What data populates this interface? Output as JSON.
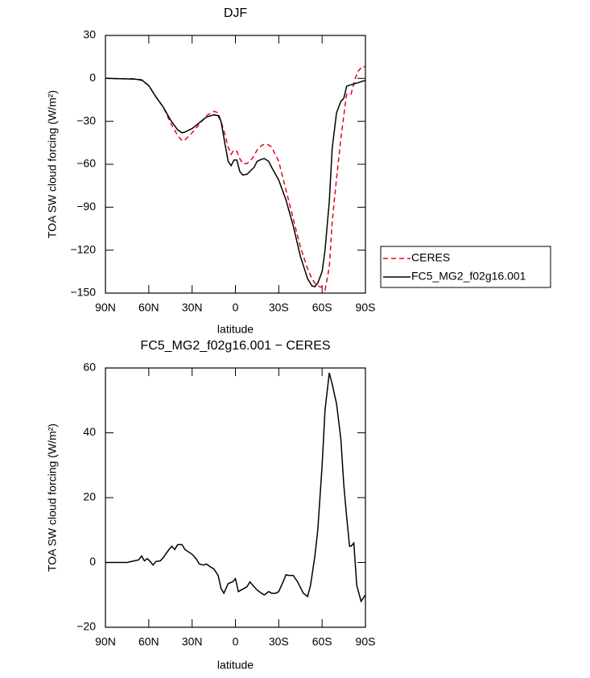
{
  "chart_data": [
    {
      "type": "line",
      "title": "DJF",
      "xlabel": "latitude",
      "ylabel": "TOA SW cloud forcing (W/m²)",
      "x": [
        90,
        70,
        65,
        60,
        55,
        50,
        45,
        40,
        37,
        35,
        30,
        25,
        20,
        15,
        12,
        10,
        7,
        5,
        3,
        1,
        -1,
        -3,
        -5,
        -8,
        -10,
        -13,
        -15,
        -18,
        -20,
        -23,
        -25,
        -30,
        -35,
        -40,
        -45,
        -50,
        -53,
        -55,
        -57,
        -60,
        -62,
        -65,
        -67,
        -70,
        -73,
        -75,
        -77,
        -80,
        -83,
        -85,
        -88,
        -90
      ],
      "series": [
        {
          "name": "CERES",
          "color": "#e8001c",
          "dash": true,
          "values": [
            0,
            -0.3,
            -1.5,
            -5,
            -13,
            -20,
            -31,
            -40,
            -43.5,
            -43,
            -38,
            -32,
            -26,
            -23,
            -24,
            -30,
            -40,
            -48,
            -53,
            -50,
            -51,
            -56,
            -59.5,
            -59.5,
            -58,
            -54,
            -50,
            -47,
            -46,
            -46.5,
            -48,
            -58,
            -78,
            -98,
            -118,
            -133,
            -140,
            -143,
            -145,
            -146,
            -148,
            -132,
            -100,
            -70,
            -42,
            -26,
            -11,
            -11,
            0,
            5,
            8.5,
            8
          ]
        },
        {
          "name": "FC5_MG2_f02g16.001",
          "color": "#000000",
          "dash": false,
          "values": [
            0,
            -0.5,
            -1,
            -5,
            -13,
            -20,
            -29,
            -36,
            -38,
            -37.5,
            -35,
            -31,
            -27,
            -25.5,
            -26,
            -30,
            -47,
            -58,
            -61,
            -57,
            -57,
            -65,
            -67.5,
            -67,
            -65,
            -62,
            -58,
            -56.5,
            -56,
            -58,
            -62,
            -71,
            -85,
            -103,
            -124.5,
            -140,
            -145,
            -145.5,
            -143,
            -135,
            -120,
            -86,
            -49,
            -24,
            -16,
            -14,
            -5.5,
            -4.5,
            -3.5,
            -3,
            -2,
            -1.5
          ]
        }
      ],
      "xlim": [
        90,
        -90
      ],
      "xticks": [
        {
          "value": 90,
          "label": "90N"
        },
        {
          "value": 60,
          "label": "60N"
        },
        {
          "value": 30,
          "label": "30N"
        },
        0,
        {
          "value": -30,
          "label": "30S"
        },
        {
          "value": -60,
          "label": "60S"
        },
        {
          "value": -90,
          "label": "90S"
        }
      ],
      "ylim": [
        -150,
        30
      ],
      "yticks": [
        30,
        0,
        {
          "value": -30,
          "label": "−30"
        },
        {
          "value": -60,
          "label": "−60"
        },
        {
          "value": -90,
          "label": "−90"
        },
        {
          "value": -120,
          "label": "−120"
        },
        {
          "value": -150,
          "label": "−150"
        }
      ],
      "legend": "right"
    },
    {
      "type": "line",
      "title": "FC5_MG2_f02g16.001 − CERES",
      "xlabel": "latitude",
      "ylabel": "TOA SW cloud forcing (W/m²)",
      "x": [
        90,
        80,
        75,
        70,
        67,
        65,
        63,
        61,
        59,
        57,
        55,
        52,
        50,
        46,
        44,
        42,
        40,
        37,
        35,
        30,
        27,
        25,
        22,
        20,
        17,
        15,
        12,
        10,
        8,
        5,
        2,
        0,
        -2,
        -4,
        -6,
        -8,
        -10,
        -12,
        -15,
        -18,
        -20,
        -23,
        -25,
        -28,
        -30,
        -33,
        -35,
        -37,
        -40,
        -43,
        -47,
        -50,
        -52,
        -55,
        -57,
        -60,
        -62,
        -65,
        -67,
        -70,
        -73,
        -75,
        -77,
        -79,
        -80,
        -82,
        -84,
        -87,
        -90
      ],
      "series": [
        {
          "color": "#000000",
          "dash": false,
          "values": [
            0,
            0,
            0,
            0.5,
            0.8,
            2,
            0.5,
            1.2,
            0.3,
            -0.8,
            0.3,
            0.5,
            1.5,
            4,
            5,
            4,
            5.5,
            5.5,
            4,
            2.5,
            1,
            -0.5,
            -0.8,
            -0.5,
            -1.5,
            -2,
            -4,
            -8,
            -9.5,
            -6.5,
            -6,
            -5,
            -9,
            -8.5,
            -8,
            -7.5,
            -6,
            -7,
            -8.5,
            -9.5,
            -10,
            -9,
            -9.5,
            -9.5,
            -9,
            -6,
            -3.8,
            -4,
            -4,
            -6,
            -9.5,
            -10.5,
            -7,
            2,
            10,
            30,
            47,
            58.5,
            55,
            49,
            38,
            24,
            14,
            5,
            5,
            6,
            -7,
            -12,
            -10
          ]
        }
      ],
      "xlim": [
        90,
        -90
      ],
      "xticks": [
        {
          "value": 90,
          "label": "90N"
        },
        {
          "value": 60,
          "label": "60N"
        },
        {
          "value": 30,
          "label": "30N"
        },
        0,
        {
          "value": -30,
          "label": "30S"
        },
        {
          "value": -60,
          "label": "60S"
        },
        {
          "value": -90,
          "label": "90S"
        }
      ],
      "ylim": [
        -20,
        60
      ],
      "yticks": [
        60,
        40,
        20,
        0,
        {
          "value": -20,
          "label": "−20"
        }
      ]
    }
  ]
}
